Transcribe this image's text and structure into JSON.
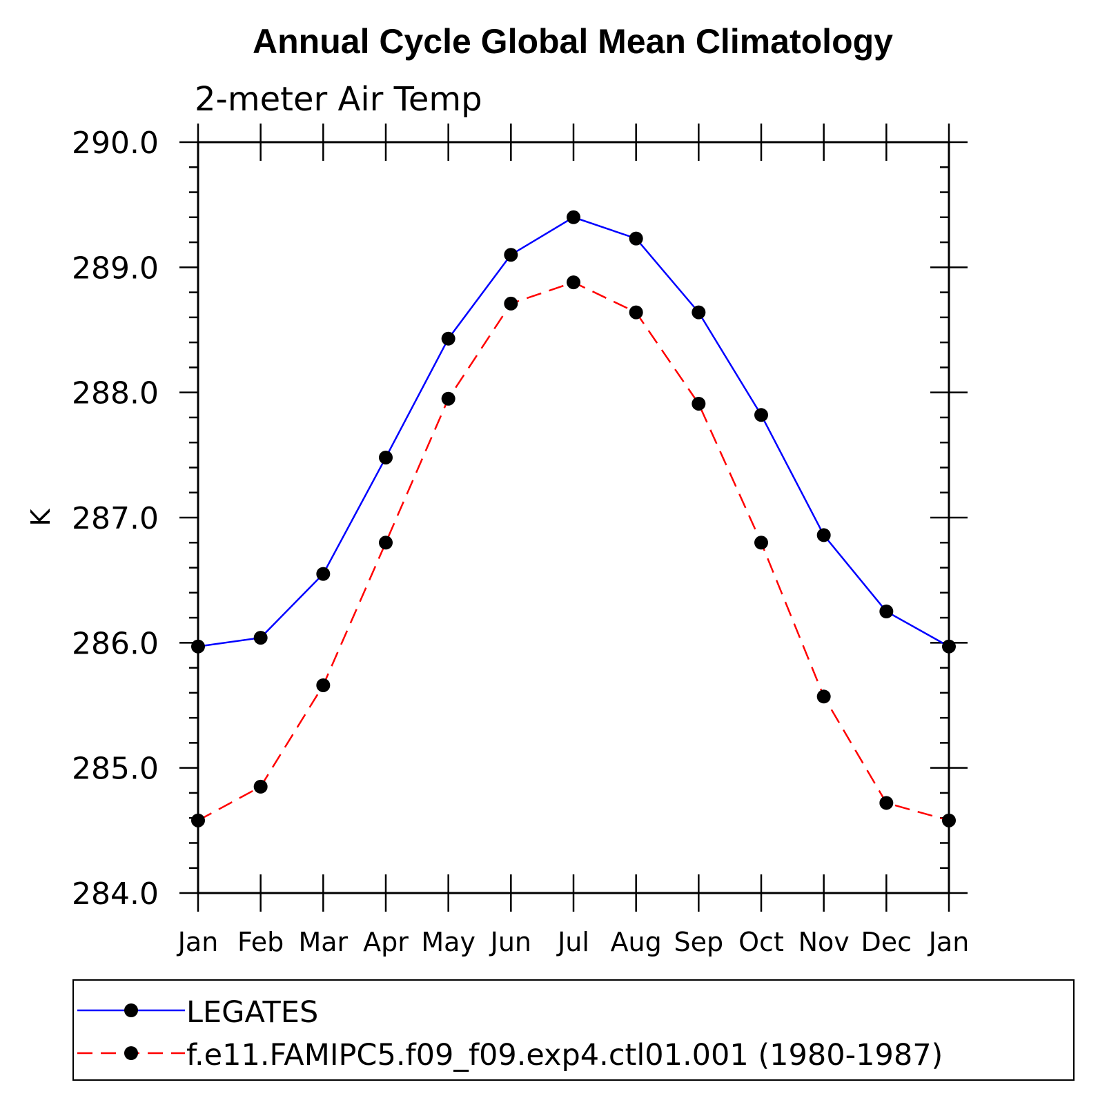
{
  "chart_data": {
    "type": "line",
    "title": "Annual Cycle Global Mean Climatology",
    "subtitle": "2-meter Air Temp",
    "ylabel": "K",
    "xlabel": "",
    "categories": [
      "Jan",
      "Feb",
      "Mar",
      "Apr",
      "May",
      "Jun",
      "Jul",
      "Aug",
      "Sep",
      "Oct",
      "Nov",
      "Dec",
      "Jan"
    ],
    "ylim": [
      284.0,
      290.0
    ],
    "yticks": [
      "284.0",
      "285.0",
      "286.0",
      "287.0",
      "288.0",
      "289.0",
      "290.0"
    ],
    "grid": false,
    "legend_position": "bottom",
    "series": [
      {
        "name": "LEGATES",
        "color": "#0000ff",
        "line_style": "solid",
        "marker": "filled-circle",
        "values": [
          285.97,
          286.04,
          286.55,
          287.48,
          288.43,
          289.1,
          289.4,
          289.23,
          288.64,
          287.82,
          286.86,
          286.25,
          285.97
        ]
      },
      {
        "name": "f.e11.FAMIPC5.f09_f09.exp4.ctl01.001 (1980-1987)",
        "color": "#ff0000",
        "line_style": "dashed",
        "marker": "filled-circle",
        "values": [
          284.58,
          284.85,
          285.66,
          286.8,
          287.95,
          288.71,
          288.88,
          288.64,
          287.91,
          286.8,
          285.57,
          284.72,
          284.58
        ]
      }
    ]
  }
}
